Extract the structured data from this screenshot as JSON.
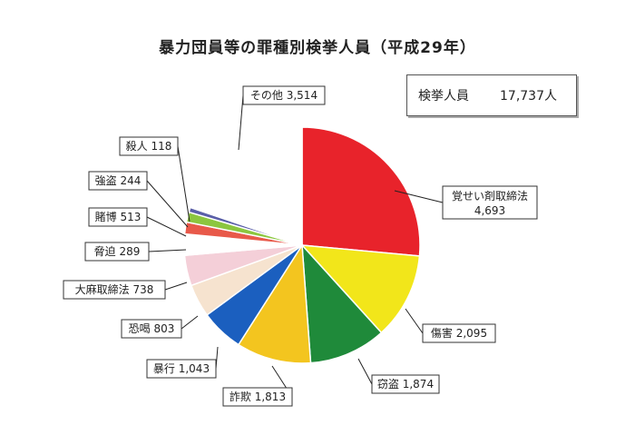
{
  "chart_data": {
    "type": "pie",
    "title": "暴力団員等の罪種別検挙人員（平成29年）",
    "total_label": "検挙人員",
    "total_value": "17,737人",
    "slices": [
      {
        "label": "覚せい剤取締法",
        "value": 4693,
        "display": "4,693",
        "color": "#e8232b"
      },
      {
        "label": "傷害",
        "value": 2095,
        "display": "2,095",
        "color": "#f2e61a"
      },
      {
        "label": "窃盗",
        "value": 1874,
        "display": "1,874",
        "color": "#1f8a3a"
      },
      {
        "label": "詐欺",
        "value": 1813,
        "display": "1,813",
        "color": "#f3c51f"
      },
      {
        "label": "暴行",
        "value": 1043,
        "display": "1,043",
        "color": "#1b5fbf"
      },
      {
        "label": "恐喝",
        "value": 803,
        "display": "803",
        "color": "#f6e3cf"
      },
      {
        "label": "大麻取締法",
        "value": 738,
        "display": "738",
        "color": "#f4cfd8"
      },
      {
        "label": "賭博",
        "value": 513,
        "display": "513",
        "color": "#ffffff"
      },
      {
        "label": "脅迫",
        "value": 289,
        "display": "289",
        "color": "#e8594a"
      },
      {
        "label": "強盗",
        "value": 244,
        "display": "244",
        "color": "#8cc63f"
      },
      {
        "label": "殺人",
        "value": 118,
        "display": "118",
        "color": "#5a5fa8"
      },
      {
        "label": "その他",
        "value": 3514,
        "display": "3,514",
        "color": "#ffffff"
      }
    ]
  }
}
